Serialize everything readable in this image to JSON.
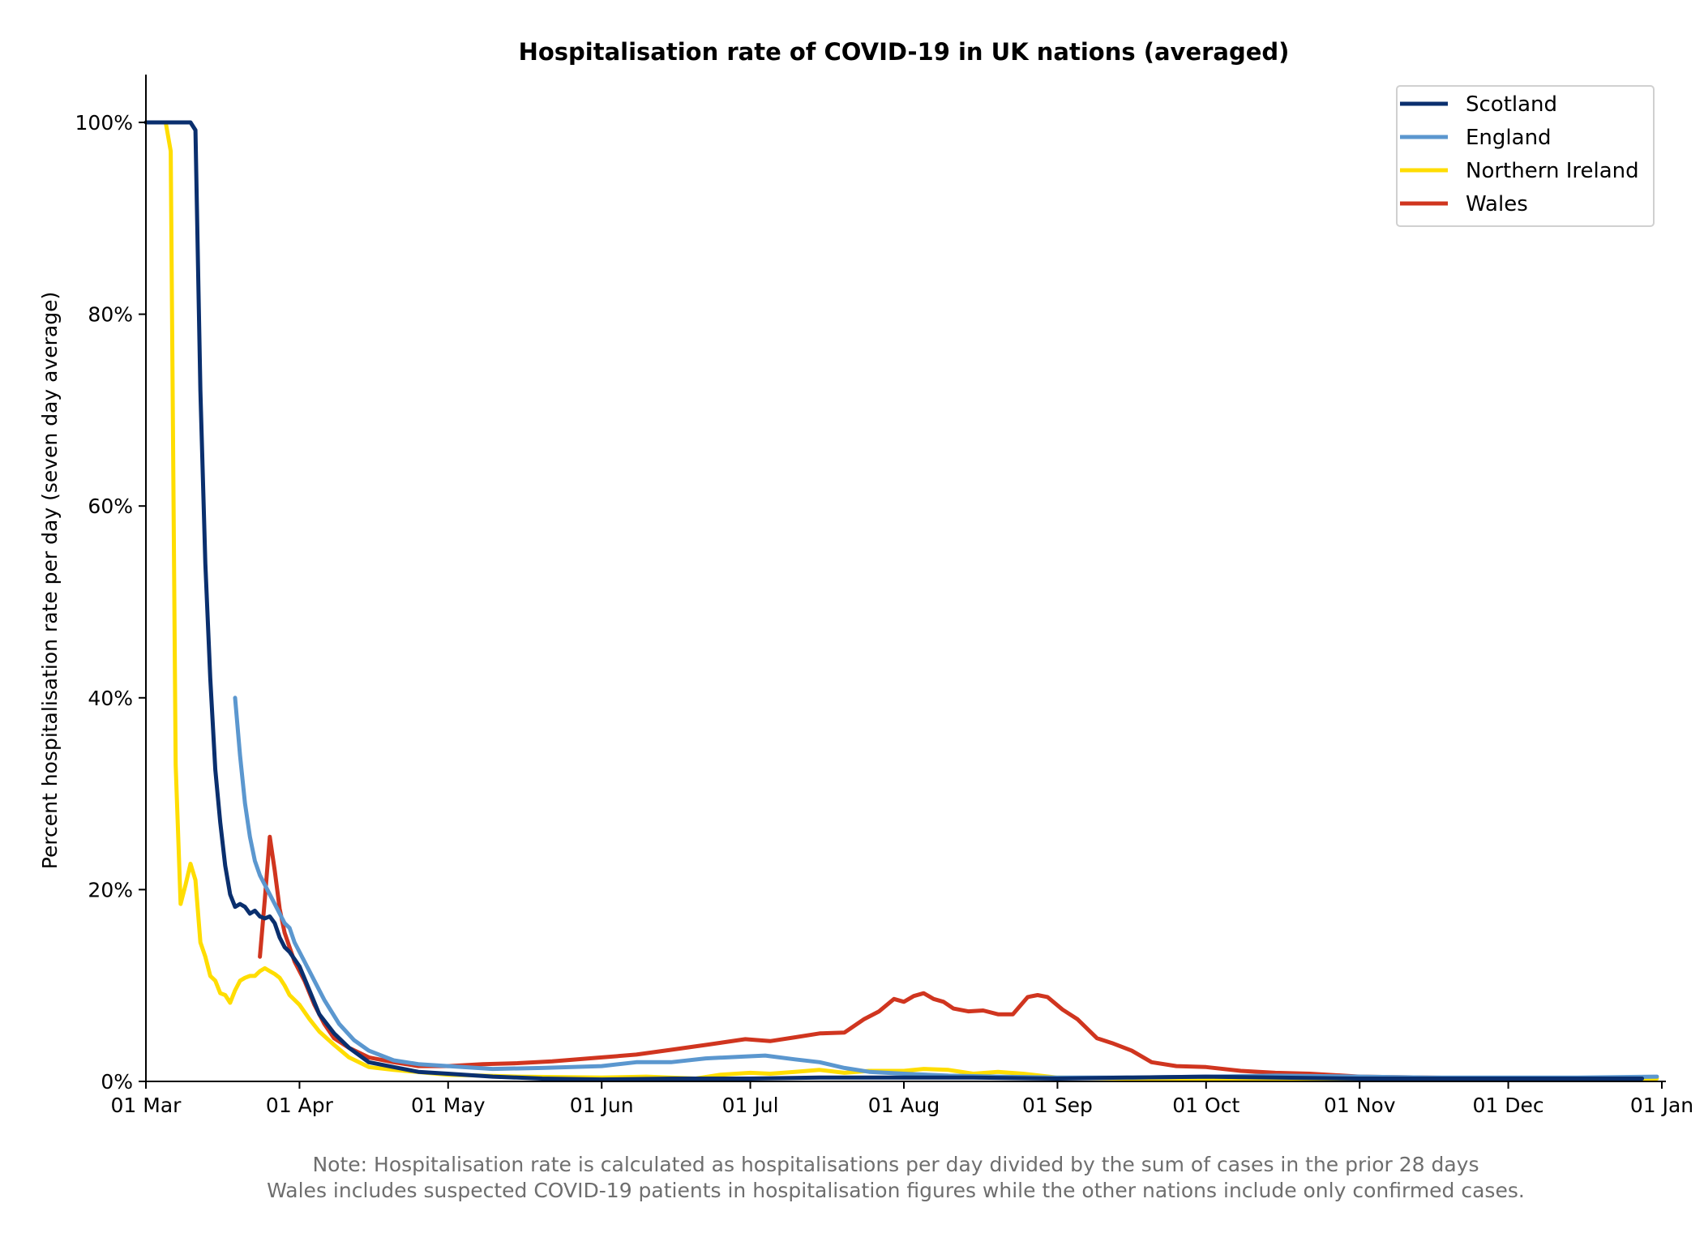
{
  "chart_data": {
    "type": "line",
    "title": "Hospitalisation rate of COVID-19 in UK nations (averaged)",
    "xlabel": "",
    "ylabel": "Percent hospitalisation rate per day (seven day average)",
    "x_ticks": [
      "01 Mar",
      "01 Apr",
      "01 May",
      "01 Jun",
      "01 Jul",
      "01 Aug",
      "01 Sep",
      "01 Oct",
      "01 Nov",
      "01 Dec",
      "01 Jan"
    ],
    "y_ticks": [
      "0%",
      "20%",
      "40%",
      "60%",
      "80%",
      "100%"
    ],
    "xlim": [
      "2020-03-01",
      "2021-01-01"
    ],
    "ylim": [
      0,
      105
    ],
    "grid": false,
    "legend_position": "top-right",
    "notes": [
      "Note: Hospitalisation rate is calculated as hospitalisations per day divided by the sum of cases in the prior 28 days",
      "Wales includes suspected COVID-19 patients in hospitalisation figures while the other nations include only confirmed cases."
    ],
    "series": [
      {
        "name": "Scotland",
        "color": "#0a2f6e",
        "points": [
          [
            "2020-03-01",
            100
          ],
          [
            "2020-03-05",
            100
          ],
          [
            "2020-03-10",
            100
          ],
          [
            "2020-03-11",
            99.2
          ],
          [
            "2020-03-12",
            72
          ],
          [
            "2020-03-13",
            54
          ],
          [
            "2020-03-14",
            42
          ],
          [
            "2020-03-15",
            32.5
          ],
          [
            "2020-03-16",
            27
          ],
          [
            "2020-03-17",
            22.5
          ],
          [
            "2020-03-18",
            19.5
          ],
          [
            "2020-03-19",
            18.2
          ],
          [
            "2020-03-20",
            18.5
          ],
          [
            "2020-03-21",
            18.2
          ],
          [
            "2020-03-22",
            17.5
          ],
          [
            "2020-03-23",
            17.8
          ],
          [
            "2020-03-24",
            17.2
          ],
          [
            "2020-03-25",
            17.0
          ],
          [
            "2020-03-26",
            17.2
          ],
          [
            "2020-03-27",
            16.5
          ],
          [
            "2020-03-28",
            15.0
          ],
          [
            "2020-03-29",
            14.0
          ],
          [
            "2020-03-30",
            13.5
          ],
          [
            "2020-04-01",
            12.0
          ],
          [
            "2020-04-03",
            9.5
          ],
          [
            "2020-04-05",
            7.0
          ],
          [
            "2020-04-08",
            5.0
          ],
          [
            "2020-04-11",
            3.5
          ],
          [
            "2020-04-15",
            2.0
          ],
          [
            "2020-04-20",
            1.5
          ],
          [
            "2020-04-25",
            1.0
          ],
          [
            "2020-05-01",
            0.8
          ],
          [
            "2020-05-10",
            0.5
          ],
          [
            "2020-05-20",
            0.3
          ],
          [
            "2020-06-01",
            0.2
          ],
          [
            "2020-06-15",
            0.3
          ],
          [
            "2020-07-01",
            0.3
          ],
          [
            "2020-07-15",
            0.4
          ],
          [
            "2020-08-01",
            0.4
          ],
          [
            "2020-08-15",
            0.4
          ],
          [
            "2020-09-01",
            0.3
          ],
          [
            "2020-09-15",
            0.4
          ],
          [
            "2020-10-01",
            0.5
          ],
          [
            "2020-10-15",
            0.4
          ],
          [
            "2020-11-01",
            0.3
          ],
          [
            "2020-11-15",
            0.3
          ],
          [
            "2020-12-01",
            0.3
          ],
          [
            "2020-12-15",
            0.3
          ],
          [
            "2020-12-28",
            0.3
          ]
        ]
      },
      {
        "name": "England",
        "color": "#5b97cf",
        "points": [
          [
            "2020-03-19",
            40.0
          ],
          [
            "2020-03-20",
            34.0
          ],
          [
            "2020-03-21",
            29.0
          ],
          [
            "2020-03-22",
            25.5
          ],
          [
            "2020-03-23",
            23.0
          ],
          [
            "2020-03-24",
            21.5
          ],
          [
            "2020-03-25",
            20.5
          ],
          [
            "2020-03-26",
            19.5
          ],
          [
            "2020-03-27",
            18.5
          ],
          [
            "2020-03-28",
            17.5
          ],
          [
            "2020-03-29",
            16.5
          ],
          [
            "2020-03-30",
            16.0
          ],
          [
            "2020-03-31",
            14.5
          ],
          [
            "2020-04-02",
            12.5
          ],
          [
            "2020-04-04",
            10.5
          ],
          [
            "2020-04-06",
            8.5
          ],
          [
            "2020-04-09",
            6.0
          ],
          [
            "2020-04-12",
            4.3
          ],
          [
            "2020-04-15",
            3.2
          ],
          [
            "2020-04-20",
            2.2
          ],
          [
            "2020-04-25",
            1.8
          ],
          [
            "2020-05-01",
            1.6
          ],
          [
            "2020-05-10",
            1.3
          ],
          [
            "2020-05-20",
            1.4
          ],
          [
            "2020-06-01",
            1.6
          ],
          [
            "2020-06-08",
            2.0
          ],
          [
            "2020-06-15",
            2.0
          ],
          [
            "2020-06-22",
            2.4
          ],
          [
            "2020-06-30",
            2.6
          ],
          [
            "2020-07-04",
            2.7
          ],
          [
            "2020-07-10",
            2.3
          ],
          [
            "2020-07-15",
            2.0
          ],
          [
            "2020-07-20",
            1.4
          ],
          [
            "2020-07-25",
            1.0
          ],
          [
            "2020-08-01",
            0.8
          ],
          [
            "2020-08-10",
            0.6
          ],
          [
            "2020-08-20",
            0.5
          ],
          [
            "2020-09-01",
            0.4
          ],
          [
            "2020-09-15",
            0.4
          ],
          [
            "2020-10-01",
            0.5
          ],
          [
            "2020-10-15",
            0.6
          ],
          [
            "2020-11-01",
            0.5
          ],
          [
            "2020-11-15",
            0.4
          ],
          [
            "2020-12-01",
            0.4
          ],
          [
            "2020-12-15",
            0.4
          ],
          [
            "2020-12-31",
            0.5
          ]
        ]
      },
      {
        "name": "Northern Ireland",
        "color": "#ffdd00",
        "points": [
          [
            "2020-03-01",
            100
          ],
          [
            "2020-03-05",
            100
          ],
          [
            "2020-03-06",
            97
          ],
          [
            "2020-03-07",
            33
          ],
          [
            "2020-03-08",
            18.5
          ],
          [
            "2020-03-09",
            20.5
          ],
          [
            "2020-03-10",
            22.7
          ],
          [
            "2020-03-11",
            21
          ],
          [
            "2020-03-12",
            14.5
          ],
          [
            "2020-03-13",
            13.0
          ],
          [
            "2020-03-14",
            11.0
          ],
          [
            "2020-03-15",
            10.5
          ],
          [
            "2020-03-16",
            9.2
          ],
          [
            "2020-03-17",
            9.0
          ],
          [
            "2020-03-18",
            8.2
          ],
          [
            "2020-03-19",
            9.5
          ],
          [
            "2020-03-20",
            10.5
          ],
          [
            "2020-03-21",
            10.8
          ],
          [
            "2020-03-22",
            11.0
          ],
          [
            "2020-03-23",
            11.0
          ],
          [
            "2020-03-24",
            11.5
          ],
          [
            "2020-03-25",
            11.8
          ],
          [
            "2020-03-26",
            11.5
          ],
          [
            "2020-03-27",
            11.2
          ],
          [
            "2020-03-28",
            10.8
          ],
          [
            "2020-03-29",
            10.0
          ],
          [
            "2020-03-30",
            9.0
          ],
          [
            "2020-04-01",
            8.0
          ],
          [
            "2020-04-03",
            6.5
          ],
          [
            "2020-04-05",
            5.2
          ],
          [
            "2020-04-08",
            3.8
          ],
          [
            "2020-04-11",
            2.5
          ],
          [
            "2020-04-15",
            1.5
          ],
          [
            "2020-04-20",
            1.2
          ],
          [
            "2020-05-01",
            0.7
          ],
          [
            "2020-05-15",
            0.5
          ],
          [
            "2020-06-01",
            0.4
          ],
          [
            "2020-06-10",
            0.5
          ],
          [
            "2020-06-20",
            0.3
          ],
          [
            "2020-06-25",
            0.7
          ],
          [
            "2020-07-01",
            0.9
          ],
          [
            "2020-07-05",
            0.8
          ],
          [
            "2020-07-10",
            1.0
          ],
          [
            "2020-07-15",
            1.2
          ],
          [
            "2020-07-20",
            0.9
          ],
          [
            "2020-07-25",
            1.1
          ],
          [
            "2020-08-01",
            1.1
          ],
          [
            "2020-08-05",
            1.3
          ],
          [
            "2020-08-10",
            1.2
          ],
          [
            "2020-08-15",
            0.8
          ],
          [
            "2020-08-20",
            1.0
          ],
          [
            "2020-08-25",
            0.8
          ],
          [
            "2020-09-01",
            0.4
          ],
          [
            "2020-09-15",
            0.3
          ],
          [
            "2020-10-01",
            0.3
          ],
          [
            "2020-10-15",
            0.2
          ],
          [
            "2020-11-01",
            0.2
          ],
          [
            "2020-11-15",
            0.2
          ],
          [
            "2020-12-01",
            0.2
          ],
          [
            "2020-12-15",
            0.3
          ],
          [
            "2020-12-31",
            0.3
          ]
        ]
      },
      {
        "name": "Wales",
        "color": "#d0351f",
        "points": [
          [
            "2020-03-24",
            13.0
          ],
          [
            "2020-03-25",
            19.0
          ],
          [
            "2020-03-26",
            25.5
          ],
          [
            "2020-03-27",
            22.0
          ],
          [
            "2020-03-28",
            18.0
          ],
          [
            "2020-03-29",
            15.5
          ],
          [
            "2020-03-30",
            14.0
          ],
          [
            "2020-03-31",
            12.5
          ],
          [
            "2020-04-02",
            10.5
          ],
          [
            "2020-04-04",
            8.0
          ],
          [
            "2020-04-06",
            6.0
          ],
          [
            "2020-04-08",
            4.5
          ],
          [
            "2020-04-11",
            3.5
          ],
          [
            "2020-04-15",
            2.5
          ],
          [
            "2020-04-20",
            2.0
          ],
          [
            "2020-04-25",
            1.6
          ],
          [
            "2020-05-01",
            1.6
          ],
          [
            "2020-05-08",
            1.8
          ],
          [
            "2020-05-15",
            1.9
          ],
          [
            "2020-05-22",
            2.1
          ],
          [
            "2020-06-01",
            2.5
          ],
          [
            "2020-06-08",
            2.8
          ],
          [
            "2020-06-15",
            3.3
          ],
          [
            "2020-06-22",
            3.8
          ],
          [
            "2020-06-30",
            4.4
          ],
          [
            "2020-07-05",
            4.2
          ],
          [
            "2020-07-10",
            4.6
          ],
          [
            "2020-07-15",
            5.0
          ],
          [
            "2020-07-20",
            5.1
          ],
          [
            "2020-07-24",
            6.5
          ],
          [
            "2020-07-27",
            7.3
          ],
          [
            "2020-07-30",
            8.6
          ],
          [
            "2020-08-01",
            8.3
          ],
          [
            "2020-08-03",
            8.9
          ],
          [
            "2020-08-05",
            9.2
          ],
          [
            "2020-08-07",
            8.6
          ],
          [
            "2020-08-09",
            8.3
          ],
          [
            "2020-08-11",
            7.6
          ],
          [
            "2020-08-14",
            7.3
          ],
          [
            "2020-08-17",
            7.4
          ],
          [
            "2020-08-20",
            7.0
          ],
          [
            "2020-08-23",
            7.0
          ],
          [
            "2020-08-26",
            8.8
          ],
          [
            "2020-08-28",
            9.0
          ],
          [
            "2020-08-30",
            8.8
          ],
          [
            "2020-09-02",
            7.5
          ],
          [
            "2020-09-05",
            6.5
          ],
          [
            "2020-09-09",
            4.5
          ],
          [
            "2020-09-12",
            4.0
          ],
          [
            "2020-09-16",
            3.2
          ],
          [
            "2020-09-20",
            2.0
          ],
          [
            "2020-09-25",
            1.6
          ],
          [
            "2020-10-01",
            1.5
          ],
          [
            "2020-10-08",
            1.1
          ],
          [
            "2020-10-15",
            0.9
          ],
          [
            "2020-10-22",
            0.8
          ],
          [
            "2020-11-01",
            0.5
          ],
          [
            "2020-11-15",
            0.4
          ],
          [
            "2020-12-01",
            0.3
          ],
          [
            "2020-12-15",
            0.3
          ],
          [
            "2020-12-28",
            0.3
          ]
        ]
      }
    ]
  }
}
